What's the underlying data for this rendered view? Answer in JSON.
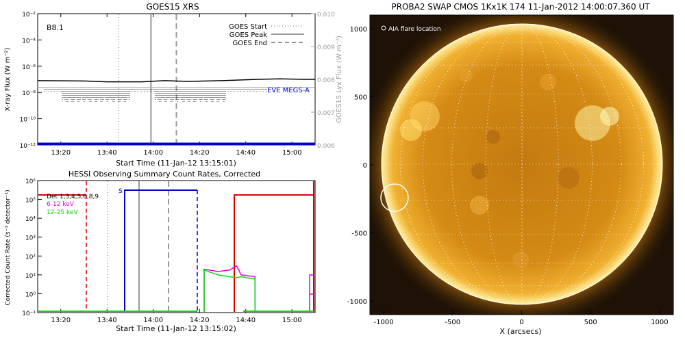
{
  "colors": {
    "goes_flux": "#000000",
    "goes_lya": "#999999",
    "eve": "#0000cc",
    "hessi_grid": "#000000",
    "hessi_red": "#dd0000",
    "hessi_blue": "#0000cc",
    "hessi_magenta": "#e000e0",
    "hessi_green": "#00dd00",
    "swap_disk": "#e89a10"
  },
  "chart_data": [
    {
      "type": "line",
      "title": "GOES15 XRS",
      "xlabel": "Start Time (11-Jan-12 13:15:01)",
      "ylabel": "X-ray Flux (W m⁻²)",
      "ylabel_right": "GOES15 Lyx Flux (W m⁻²)",
      "class_label": "B8.1",
      "x_range": [
        "13:10",
        "15:10"
      ],
      "x_ticks": [
        "13:20",
        "13:40",
        "14:00",
        "14:20",
        "14:40",
        "15:00"
      ],
      "y_scale": "log",
      "y_range": [
        1e-12,
        0.01
      ],
      "y_ticks": [
        "10⁻¹²",
        "10⁻¹⁰",
        "10⁻⁸",
        "10⁻⁶",
        "10⁻⁴",
        "10⁻²"
      ],
      "y_right_range": [
        0.006,
        0.01
      ],
      "y_right_ticks": [
        "0.006",
        "0.007",
        "0.008",
        "0.009",
        "0.010"
      ],
      "legend": [
        "GOES Start",
        "GOES Peak",
        "GOES End"
      ],
      "legend_placement": "top-right",
      "markers": {
        "start": "13:45",
        "peak": "13:59",
        "end": "14:10"
      },
      "annotation": "EVE MEGS-A",
      "series": [
        {
          "name": "",
          "x": [
            "13:10",
            "13:30",
            "13:40",
            "13:55",
            "14:05",
            "14:15",
            "14:30",
            "14:45",
            "14:55",
            "15:05",
            "15:10"
          ],
          "y": [
            8e-08,
            7.5e-08,
            6.5e-08,
            6.5e-08,
            8e-08,
            7e-08,
            8e-08,
            1e-07,
            1.1e-07,
            1e-07,
            1e-07
          ]
        },
        {
          "name": "EVE MEGS-A",
          "x": [
            "13:10",
            "15:10"
          ],
          "y": [
            1.2e-12,
            1.2e-12
          ]
        }
      ]
    },
    {
      "type": "line",
      "title": "HESSI Observing Summary Count Rates, Corrected",
      "xlabel": "Start Time (11-Jan-12 13:15:02)",
      "ylabel": "Corrected Count Rate (s⁻¹ detector⁻¹)",
      "x_range": [
        "13:10",
        "15:10"
      ],
      "x_ticks": [
        "13:20",
        "13:40",
        "14:00",
        "14:20",
        "14:40",
        "15:00"
      ],
      "y_scale": "log",
      "y_range": [
        0.1,
        1000000.0
      ],
      "y_ticks": [
        "10⁻¹",
        "10⁰",
        "10¹",
        "10²",
        "10³",
        "10⁴",
        "10⁵",
        "10⁶"
      ],
      "legend": [
        "Det 1,3,4,5,6,8,9",
        "6-12 keV",
        "12-25 keV"
      ],
      "legend_placement": "top-left",
      "saa_label": "S",
      "series": [
        {
          "name": "6-12 keV",
          "x": [
            "14:22",
            "14:28",
            "14:33",
            "14:36",
            "14:38",
            "14:44"
          ],
          "y": [
            20,
            15,
            18,
            30,
            10,
            8
          ]
        },
        {
          "name": "12-25 keV",
          "x": [
            "14:22",
            "14:28",
            "14:33",
            "14:36",
            "14:38",
            "14:44"
          ],
          "y": [
            18,
            10,
            8,
            7,
            8,
            6
          ]
        }
      ]
    },
    {
      "type": "image",
      "title": "PROBA2 SWAP CMOS 1Kx1K 174 11-Jan-2012 14:00:07.360 UT",
      "xlabel": "X (arcsecs)",
      "x_range": [
        -1100,
        1100
      ],
      "y_range": [
        -1100,
        1100
      ],
      "x_ticks": [
        "-1000",
        "-500",
        "0",
        "500",
        "1000"
      ],
      "y_ticks": [
        "-1000",
        "-500",
        "0",
        "500",
        "1000"
      ],
      "legend": [
        "AIA flare location"
      ],
      "flare_location": [
        -930,
        -240
      ]
    }
  ]
}
